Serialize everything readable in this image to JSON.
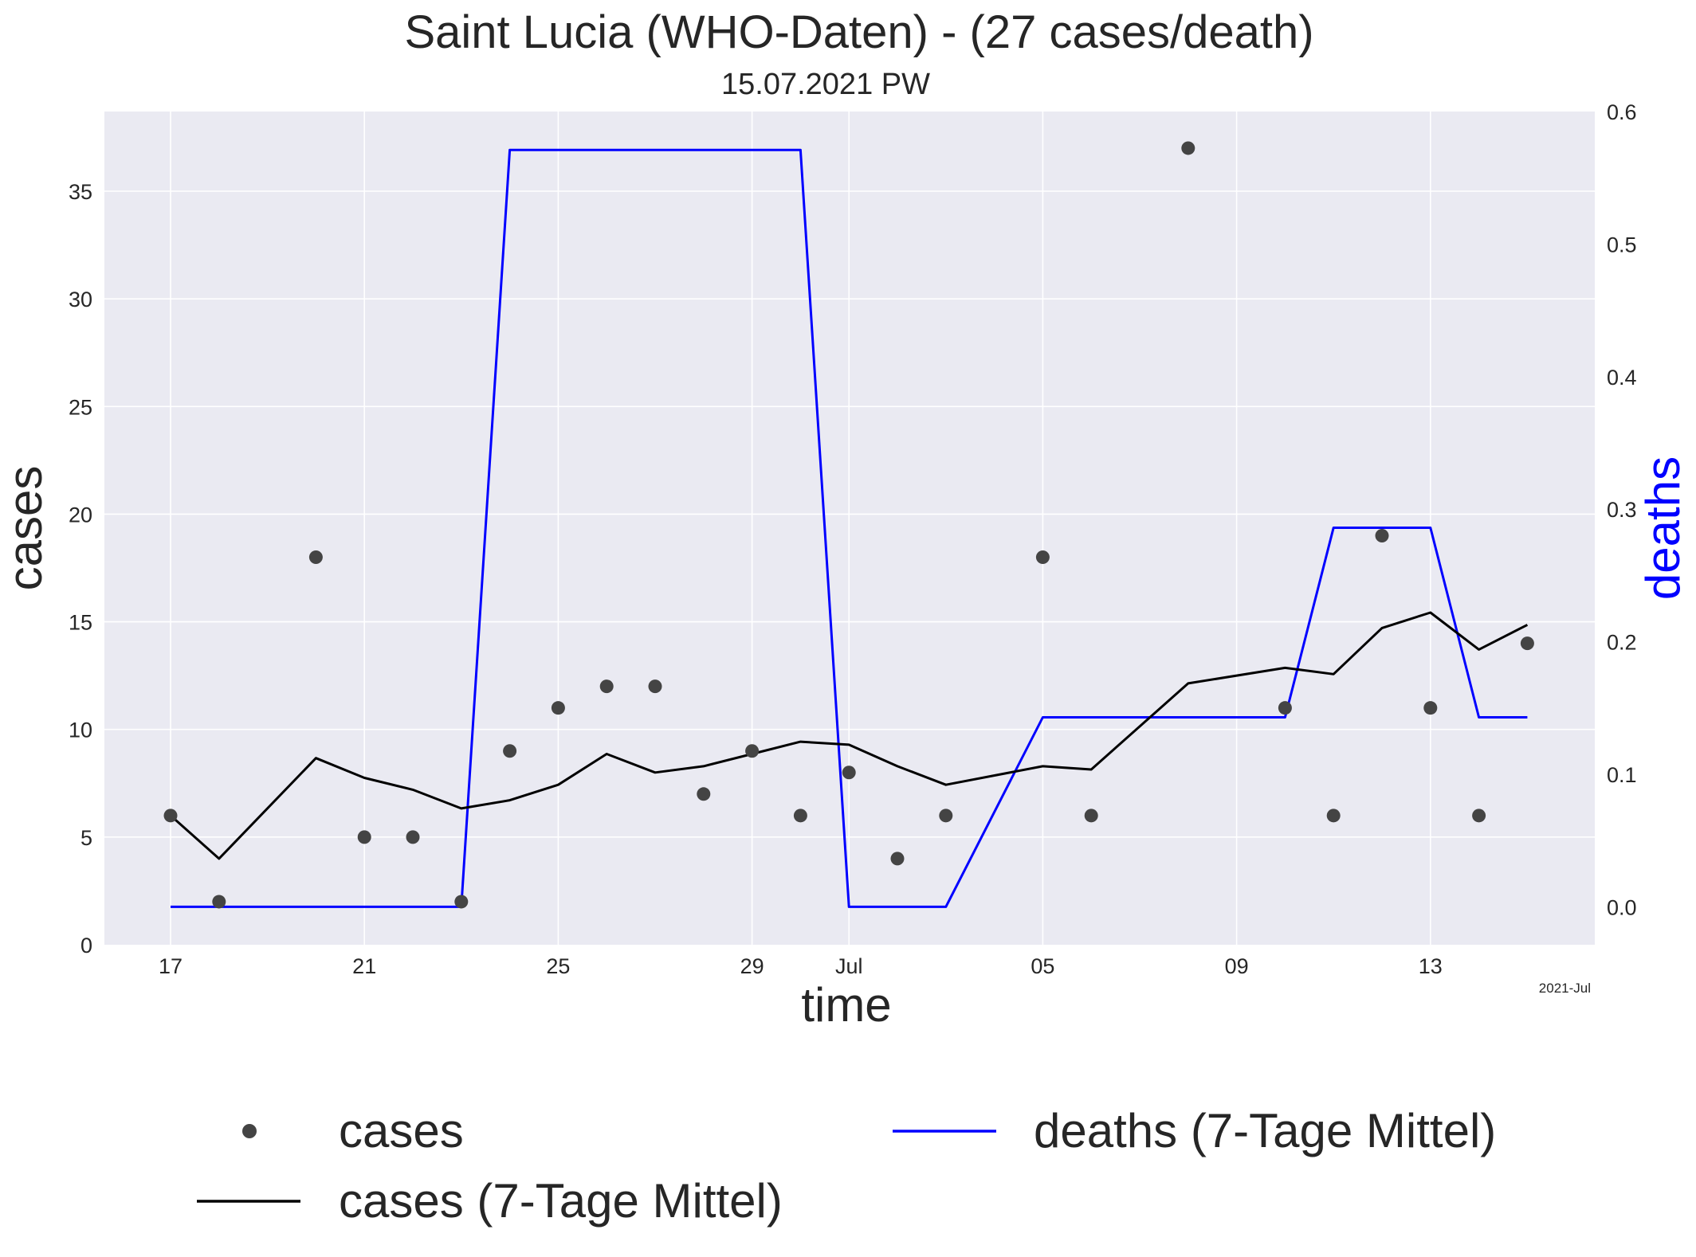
{
  "chart_data": {
    "type": "line",
    "title": "Saint Lucia (WHO-Daten) - (27 cases/death)",
    "subtitle": "15.07.2021 PW",
    "xlabel": "time",
    "ylabel_left": "cases",
    "ylabel_right": "deaths",
    "x_offset_label": "2021-Jul",
    "x_dates": [
      "2021-06-17",
      "2021-06-18",
      "2021-06-19",
      "2021-06-20",
      "2021-06-21",
      "2021-06-22",
      "2021-06-23",
      "2021-06-24",
      "2021-06-25",
      "2021-06-26",
      "2021-06-27",
      "2021-06-28",
      "2021-06-29",
      "2021-06-30",
      "2021-07-01",
      "2021-07-02",
      "2021-07-03",
      "2021-07-04",
      "2021-07-05",
      "2021-07-06",
      "2021-07-07",
      "2021-07-08",
      "2021-07-09",
      "2021-07-10",
      "2021-07-11",
      "2021-07-12",
      "2021-07-13",
      "2021-07-14",
      "2021-07-15"
    ],
    "x_ticks": [
      {
        "date": "2021-06-17",
        "label": "17"
      },
      {
        "date": "2021-06-21",
        "label": "21"
      },
      {
        "date": "2021-06-25",
        "label": "25"
      },
      {
        "date": "2021-06-29",
        "label": "29"
      },
      {
        "date": "2021-07-01",
        "label": "Jul"
      },
      {
        "date": "2021-07-05",
        "label": "05"
      },
      {
        "date": "2021-07-09",
        "label": "09"
      },
      {
        "date": "2021-07-13",
        "label": "13"
      }
    ],
    "ylim_left": [
      0,
      38.7
    ],
    "yticks_left": [
      0,
      5,
      10,
      15,
      20,
      25,
      30,
      35
    ],
    "ylim_right": [
      -0.0286,
      0.6
    ],
    "yticks_right": [
      "0.0",
      "0.1",
      "0.2",
      "0.3",
      "0.4",
      "0.5",
      "0.6"
    ],
    "grid": true,
    "legend_position": "bottom",
    "series": [
      {
        "name": "cases",
        "axis": "left",
        "type": "scatter",
        "color": "#444444",
        "values": [
          6,
          2,
          null,
          18,
          5,
          5,
          2,
          9,
          11,
          12,
          12,
          7,
          9,
          6,
          8,
          4,
          6,
          null,
          18,
          6,
          null,
          37,
          null,
          11,
          6,
          19,
          11,
          6,
          14
        ]
      },
      {
        "name": "cases (7-Tage Mittel)",
        "axis": "left",
        "type": "line",
        "color": "#000000",
        "values": [
          6.0,
          4.0,
          null,
          8.67,
          7.75,
          7.2,
          6.33,
          6.71,
          7.43,
          8.86,
          8.0,
          8.29,
          8.86,
          9.43,
          9.29,
          8.29,
          7.43,
          null,
          8.29,
          8.14,
          null,
          12.14,
          null,
          12.86,
          12.57,
          14.71,
          15.43,
          13.71,
          14.86
        ]
      },
      {
        "name": "deaths (7-Tage Mittel)",
        "axis": "right",
        "type": "line",
        "color": "#0000ff",
        "values": [
          0.0,
          null,
          null,
          null,
          null,
          null,
          0.0,
          0.571,
          null,
          null,
          null,
          null,
          null,
          0.571,
          0.0,
          null,
          0.0,
          null,
          0.143,
          null,
          null,
          null,
          null,
          0.143,
          0.286,
          null,
          0.286,
          0.143,
          0.143
        ]
      }
    ]
  },
  "legend": {
    "cases": "cases",
    "cases_avg": "cases (7-Tage Mittel)",
    "deaths_avg": "deaths (7-Tage Mittel)"
  },
  "colors": {
    "plot_background": "#eaeaf2",
    "grid": "#ffffff",
    "deaths": "#0000ff",
    "cases_avg": "#000000",
    "cases_points": "#444444"
  }
}
